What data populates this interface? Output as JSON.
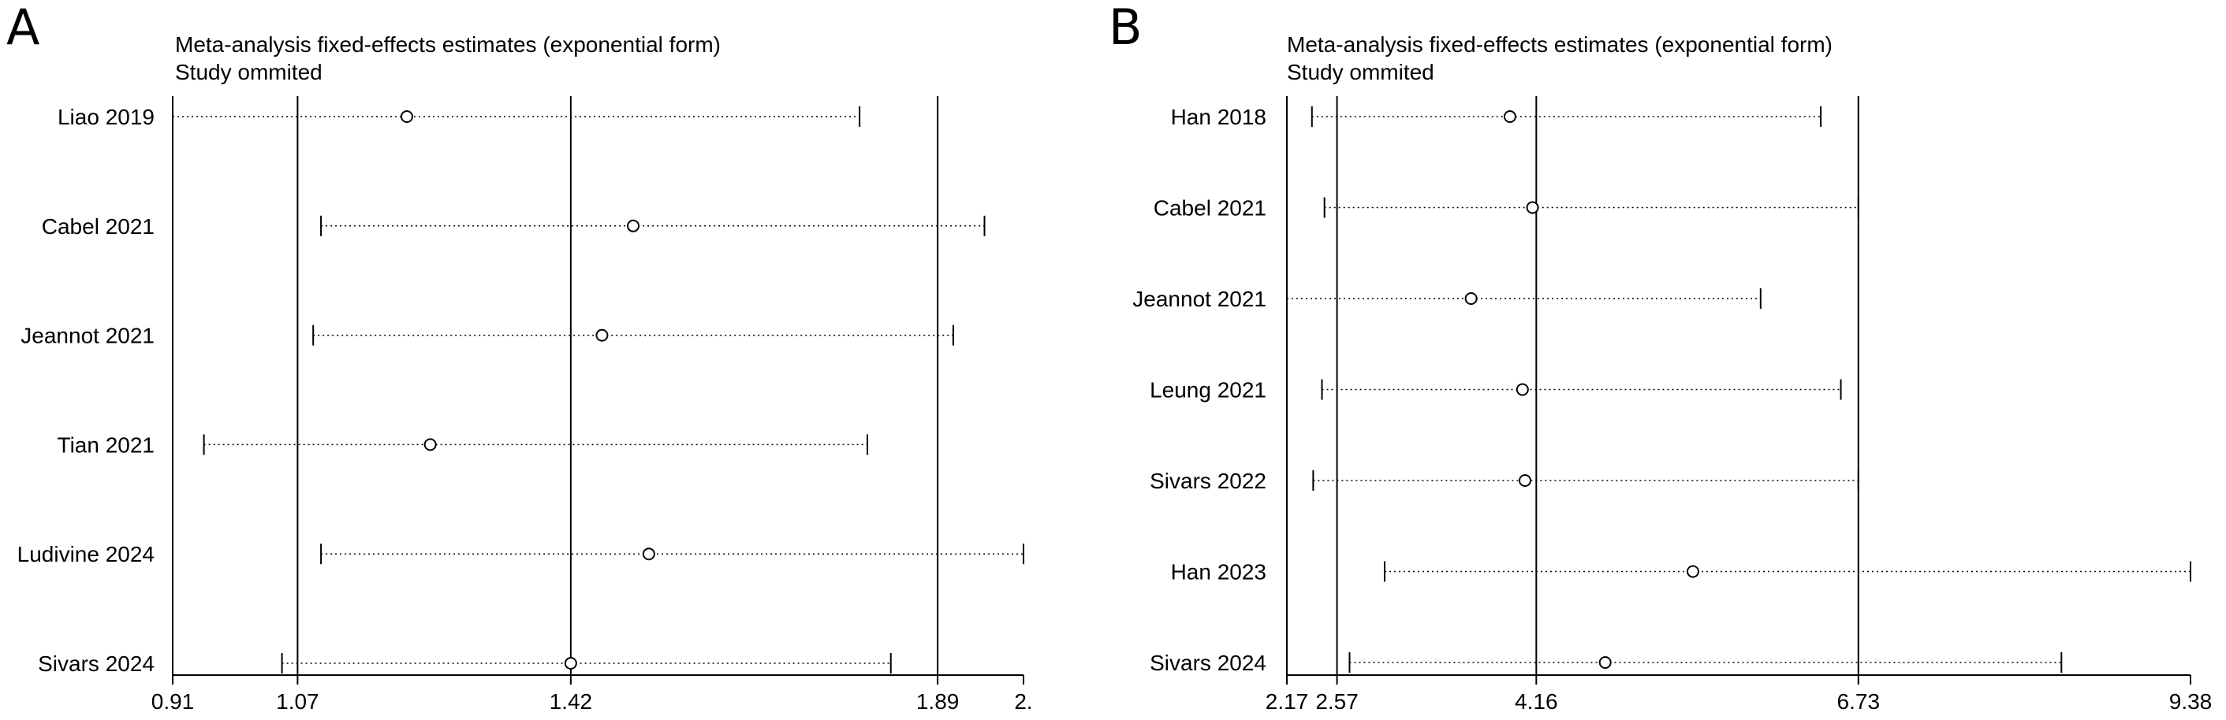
{
  "chart_data": [
    {
      "type": "forest-sensitivity",
      "panel": "A",
      "title": "Meta-analysis fixed-effects estimates (exponential form)",
      "subtitle": "Study ommited",
      "xlim": [
        0.91,
        2.0
      ],
      "ticks": [
        {
          "value": 0.91,
          "label": "0.91"
        },
        {
          "value": 1.07,
          "label": "1.07"
        },
        {
          "value": 1.42,
          "label": "1.42"
        },
        {
          "value": 1.89,
          "label": "1.89"
        },
        {
          "value": 2.0,
          "label": "2."
        }
      ],
      "reference_lines": [
        1.07,
        1.42,
        1.89
      ],
      "studies": [
        {
          "label": "Liao 2019",
          "estimate": 1.21,
          "lower": 0.91,
          "upper": 1.79
        },
        {
          "label": "Cabel 2021",
          "estimate": 1.5,
          "lower": 1.1,
          "upper": 1.95
        },
        {
          "label": "Jeannot 2021",
          "estimate": 1.46,
          "lower": 1.09,
          "upper": 1.91
        },
        {
          "label": "Tian 2021",
          "estimate": 1.24,
          "lower": 0.95,
          "upper": 1.8
        },
        {
          "label": "Ludivine 2024",
          "estimate": 1.52,
          "lower": 1.1,
          "upper": 2.0
        },
        {
          "label": "Sivars 2024",
          "estimate": 1.42,
          "lower": 1.05,
          "upper": 1.83
        }
      ]
    },
    {
      "type": "forest-sensitivity",
      "panel": "B",
      "title": "Meta-analysis fixed-effects estimates (exponential form)",
      "subtitle": "Study ommited",
      "xlim": [
        2.17,
        9.38
      ],
      "ticks": [
        {
          "value": 2.17,
          "label": "2.17"
        },
        {
          "value": 2.57,
          "label": "2.57"
        },
        {
          "value": 4.16,
          "label": "4.16"
        },
        {
          "value": 6.73,
          "label": "6.73"
        },
        {
          "value": 9.38,
          "label": "9.38"
        }
      ],
      "reference_lines": [
        2.57,
        4.16,
        6.73
      ],
      "studies": [
        {
          "label": "Han 2018",
          "estimate": 3.95,
          "lower": 2.37,
          "upper": 6.43
        },
        {
          "label": "Cabel 2021",
          "estimate": 4.13,
          "lower": 2.47,
          "upper": 6.73
        },
        {
          "label": "Jeannot 2021",
          "estimate": 3.64,
          "lower": 2.17,
          "upper": 5.95
        },
        {
          "label": "Leung 2021",
          "estimate": 4.05,
          "lower": 2.45,
          "upper": 6.59
        },
        {
          "label": "Sivars 2022",
          "estimate": 4.07,
          "lower": 2.38,
          "upper": 6.73
        },
        {
          "label": "Han 2023",
          "estimate": 5.41,
          "lower": 2.95,
          "upper": 9.38
        },
        {
          "label": "Sivars 2024",
          "estimate": 4.71,
          "lower": 2.67,
          "upper": 8.35
        }
      ]
    }
  ]
}
